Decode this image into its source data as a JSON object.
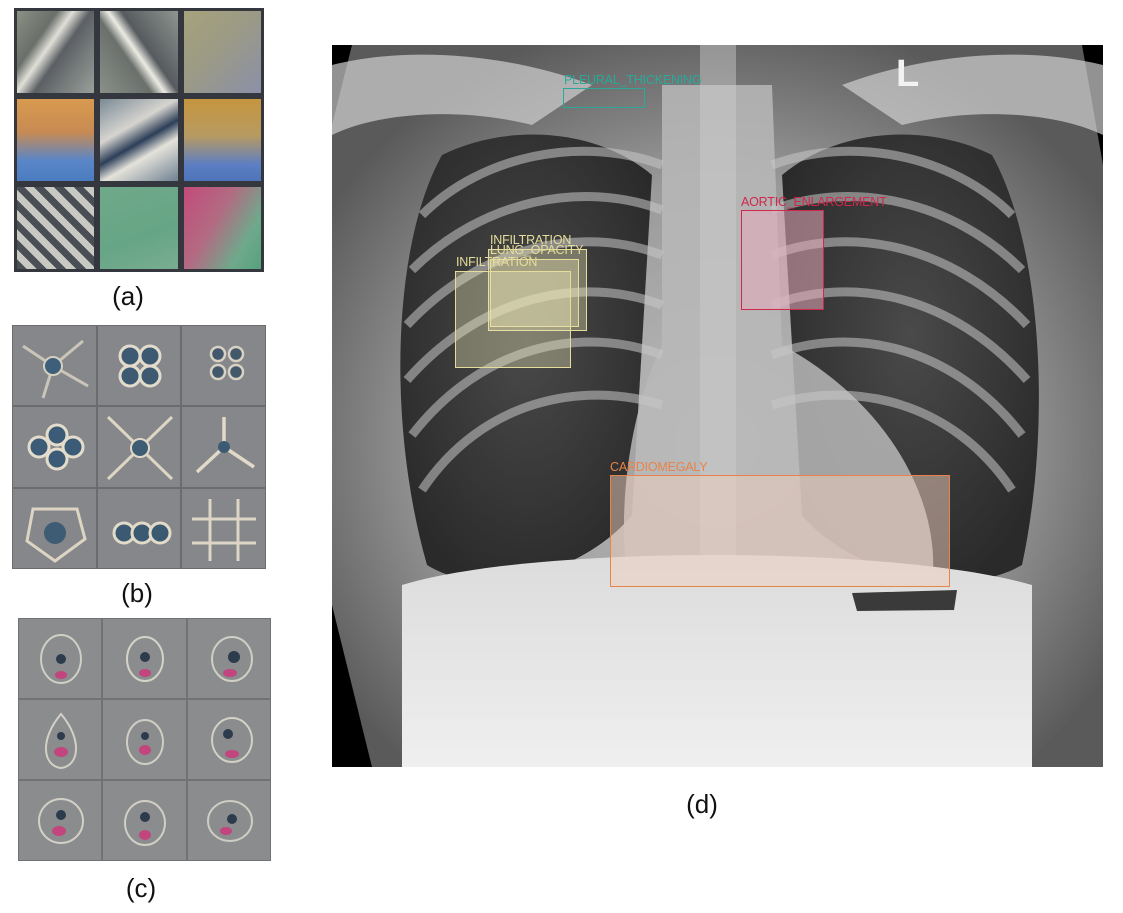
{
  "captions": {
    "a": "(a)",
    "b": "(b)",
    "c": "(c)",
    "d": "(d)"
  },
  "xray": {
    "side_marker": "L",
    "annotations": [
      {
        "label": "PLEURAL_THICKENING",
        "color": "#2aa99a"
      },
      {
        "label": "AORTIC_ENLARGEMENT",
        "color": "#d0284d"
      },
      {
        "label": "INFILTRATION",
        "color": "#e6dd9a"
      },
      {
        "label": "LUNG_OPACITY",
        "color": "#e6dd9a"
      },
      {
        "label": "INFILTRATION",
        "color": "#e6dd9a"
      },
      {
        "label": "CARDIOMEGALY",
        "color": "#e8834a"
      }
    ]
  }
}
